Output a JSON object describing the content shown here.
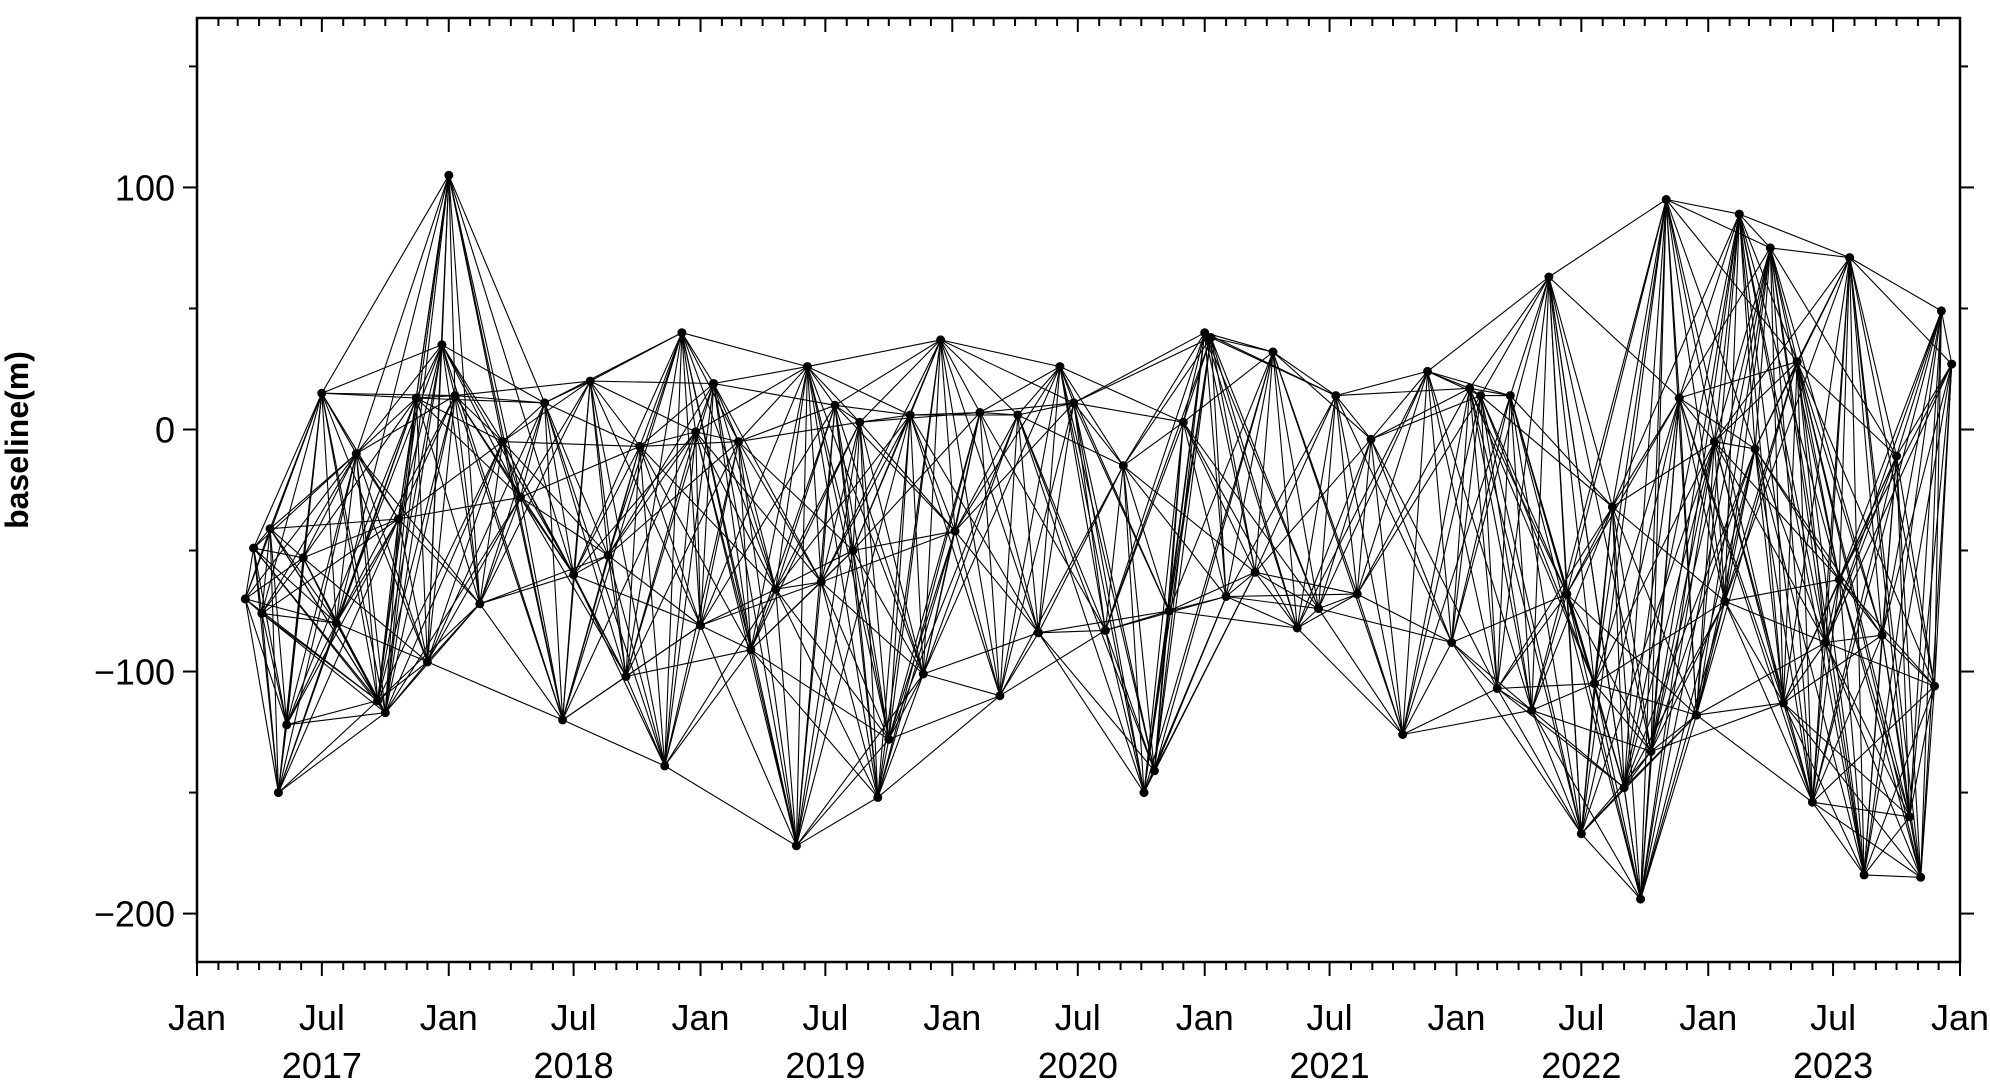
{
  "chart_data": {
    "type": "line",
    "subtype": "SBAS baseline-time network (interferometric pairs)",
    "title": "",
    "xlabel": "",
    "ylabel": "baseline(m)",
    "xlim": [
      "2017-01-01",
      "2024-01-01"
    ],
    "ylim": [
      -220,
      170
    ],
    "yticks": [
      {
        "value": 100,
        "label": "100"
      },
      {
        "value": 0,
        "label": "0"
      },
      {
        "value": -100,
        "label": "−100"
      },
      {
        "value": -200,
        "label": "−200"
      }
    ],
    "xticks": [
      {
        "date": "2017-01-01",
        "label": "Jan"
      },
      {
        "date": "2017-07-01",
        "label": "Jul"
      },
      {
        "date": "2018-01-01",
        "label": "Jan"
      },
      {
        "date": "2018-07-01",
        "label": "Jul"
      },
      {
        "date": "2019-01-01",
        "label": "Jan"
      },
      {
        "date": "2019-07-01",
        "label": "Jul"
      },
      {
        "date": "2020-01-01",
        "label": "Jan"
      },
      {
        "date": "2020-07-01",
        "label": "Jul"
      },
      {
        "date": "2021-01-01",
        "label": "Jan"
      },
      {
        "date": "2021-07-01",
        "label": "Jul"
      },
      {
        "date": "2022-01-01",
        "label": "Jan"
      },
      {
        "date": "2022-07-01",
        "label": "Jul"
      },
      {
        "date": "2023-01-01",
        "label": "Jan"
      },
      {
        "date": "2023-07-01",
        "label": "Jul"
      },
      {
        "date": "2024-01-01",
        "label": "Jan"
      }
    ],
    "year_labels": [
      {
        "date": "2017-07-01",
        "label": "2017"
      },
      {
        "date": "2018-07-01",
        "label": "2018"
      },
      {
        "date": "2019-07-01",
        "label": "2019"
      },
      {
        "date": "2020-07-01",
        "label": "2020"
      },
      {
        "date": "2021-07-01",
        "label": "2021"
      },
      {
        "date": "2022-07-01",
        "label": "2022"
      },
      {
        "date": "2023-07-01",
        "label": "2023"
      }
    ],
    "grid": false,
    "legend": "none",
    "colors": {
      "line": "#000000",
      "point": "#000000",
      "frame": "#000000",
      "background": "#ffffff"
    },
    "max_temporal_baseline_days": 200,
    "acquisitions": [
      {
        "date": "2017-03-12",
        "baseline": -70
      },
      {
        "date": "2017-03-24",
        "baseline": -49
      },
      {
        "date": "2017-04-05",
        "baseline": -76
      },
      {
        "date": "2017-04-17",
        "baseline": -41
      },
      {
        "date": "2017-04-29",
        "baseline": -150
      },
      {
        "date": "2017-05-11",
        "baseline": -122
      },
      {
        "date": "2017-06-04",
        "baseline": -53
      },
      {
        "date": "2017-07-01",
        "baseline": 15
      },
      {
        "date": "2017-07-22",
        "baseline": -80
      },
      {
        "date": "2017-08-20",
        "baseline": -10
      },
      {
        "date": "2017-09-20",
        "baseline": -112
      },
      {
        "date": "2017-10-01",
        "baseline": -117
      },
      {
        "date": "2017-10-20",
        "baseline": -37
      },
      {
        "date": "2017-11-15",
        "baseline": 13
      },
      {
        "date": "2017-12-01",
        "baseline": -96
      },
      {
        "date": "2017-12-22",
        "baseline": 35
      },
      {
        "date": "2018-01-01",
        "baseline": 105
      },
      {
        "date": "2018-01-10",
        "baseline": 14
      },
      {
        "date": "2018-02-15",
        "baseline": -72
      },
      {
        "date": "2018-03-20",
        "baseline": -5
      },
      {
        "date": "2018-04-15",
        "baseline": -28
      },
      {
        "date": "2018-05-20",
        "baseline": 11
      },
      {
        "date": "2018-06-15",
        "baseline": -120
      },
      {
        "date": "2018-07-01",
        "baseline": -60
      },
      {
        "date": "2018-07-25",
        "baseline": 20
      },
      {
        "date": "2018-08-20",
        "baseline": -52
      },
      {
        "date": "2018-09-15",
        "baseline": -102
      },
      {
        "date": "2018-10-05",
        "baseline": -7
      },
      {
        "date": "2018-11-10",
        "baseline": -139
      },
      {
        "date": "2018-12-05",
        "baseline": 40
      },
      {
        "date": "2018-12-25",
        "baseline": -1
      },
      {
        "date": "2019-01-01",
        "baseline": -81
      },
      {
        "date": "2019-01-20",
        "baseline": 19
      },
      {
        "date": "2019-02-25",
        "baseline": -5
      },
      {
        "date": "2019-03-15",
        "baseline": -91
      },
      {
        "date": "2019-04-20",
        "baseline": -66
      },
      {
        "date": "2019-05-20",
        "baseline": -172
      },
      {
        "date": "2019-06-05",
        "baseline": 26
      },
      {
        "date": "2019-06-25",
        "baseline": -63
      },
      {
        "date": "2019-07-15",
        "baseline": 10
      },
      {
        "date": "2019-08-10",
        "baseline": -50
      },
      {
        "date": "2019-08-20",
        "baseline": 3
      },
      {
        "date": "2019-09-15",
        "baseline": -152
      },
      {
        "date": "2019-10-01",
        "baseline": -128
      },
      {
        "date": "2019-11-01",
        "baseline": 6
      },
      {
        "date": "2019-11-20",
        "baseline": -101
      },
      {
        "date": "2019-12-15",
        "baseline": 37
      },
      {
        "date": "2020-01-05",
        "baseline": -42
      },
      {
        "date": "2020-02-10",
        "baseline": 7
      },
      {
        "date": "2020-03-10",
        "baseline": -110
      },
      {
        "date": "2020-04-05",
        "baseline": 6
      },
      {
        "date": "2020-05-05",
        "baseline": -84
      },
      {
        "date": "2020-06-05",
        "baseline": 26
      },
      {
        "date": "2020-06-25",
        "baseline": 11
      },
      {
        "date": "2020-08-10",
        "baseline": -83
      },
      {
        "date": "2020-09-05",
        "baseline": -15
      },
      {
        "date": "2020-10-05",
        "baseline": -150
      },
      {
        "date": "2020-10-20",
        "baseline": -141
      },
      {
        "date": "2020-11-10",
        "baseline": -75
      },
      {
        "date": "2020-12-01",
        "baseline": 3
      },
      {
        "date": "2021-01-01",
        "baseline": 40
      },
      {
        "date": "2021-01-10",
        "baseline": 38
      },
      {
        "date": "2021-02-01",
        "baseline": -69
      },
      {
        "date": "2021-03-15",
        "baseline": -59
      },
      {
        "date": "2021-04-10",
        "baseline": 32
      },
      {
        "date": "2021-05-15",
        "baseline": -82
      },
      {
        "date": "2021-06-15",
        "baseline": -74
      },
      {
        "date": "2021-07-10",
        "baseline": 14
      },
      {
        "date": "2021-08-10",
        "baseline": -68
      },
      {
        "date": "2021-08-30",
        "baseline": -4
      },
      {
        "date": "2021-10-15",
        "baseline": -126
      },
      {
        "date": "2021-11-20",
        "baseline": 24
      },
      {
        "date": "2021-12-25",
        "baseline": -88
      },
      {
        "date": "2022-01-20",
        "baseline": 17
      },
      {
        "date": "2022-02-05",
        "baseline": 14
      },
      {
        "date": "2022-03-01",
        "baseline": -107
      },
      {
        "date": "2022-03-20",
        "baseline": 14
      },
      {
        "date": "2022-04-20",
        "baseline": -116
      },
      {
        "date": "2022-05-15",
        "baseline": 63
      },
      {
        "date": "2022-06-10",
        "baseline": -68
      },
      {
        "date": "2022-07-01",
        "baseline": -167
      },
      {
        "date": "2022-07-20",
        "baseline": -105
      },
      {
        "date": "2022-08-15",
        "baseline": -32
      },
      {
        "date": "2022-09-01",
        "baseline": -148
      },
      {
        "date": "2022-09-25",
        "baseline": -194
      },
      {
        "date": "2022-10-10",
        "baseline": -133
      },
      {
        "date": "2022-11-01",
        "baseline": 95
      },
      {
        "date": "2022-11-20",
        "baseline": 13
      },
      {
        "date": "2022-12-15",
        "baseline": -118
      },
      {
        "date": "2023-01-10",
        "baseline": -5
      },
      {
        "date": "2023-01-25",
        "baseline": -71
      },
      {
        "date": "2023-02-15",
        "baseline": 89
      },
      {
        "date": "2023-03-10",
        "baseline": -8
      },
      {
        "date": "2023-04-01",
        "baseline": 75
      },
      {
        "date": "2023-04-20",
        "baseline": -113
      },
      {
        "date": "2023-05-10",
        "baseline": 28
      },
      {
        "date": "2023-06-01",
        "baseline": -154
      },
      {
        "date": "2023-06-20",
        "baseline": -88
      },
      {
        "date": "2023-07-10",
        "baseline": -62
      },
      {
        "date": "2023-07-25",
        "baseline": 71
      },
      {
        "date": "2023-08-15",
        "baseline": -184
      },
      {
        "date": "2023-09-10",
        "baseline": -85
      },
      {
        "date": "2023-10-01",
        "baseline": -11
      },
      {
        "date": "2023-10-20",
        "baseline": -160
      },
      {
        "date": "2023-11-05",
        "baseline": -185
      },
      {
        "date": "2023-11-25",
        "baseline": -106
      },
      {
        "date": "2023-12-05",
        "baseline": 49
      },
      {
        "date": "2023-12-20",
        "baseline": 27
      }
    ]
  }
}
